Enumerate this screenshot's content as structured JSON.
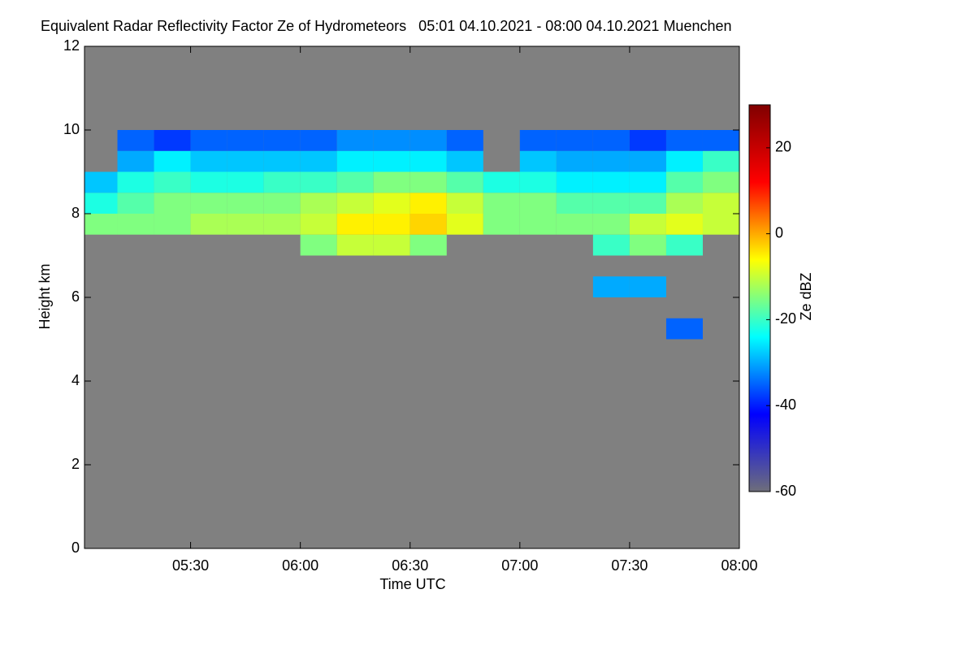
{
  "chart_data": {
    "type": "heatmap",
    "title": "Equivalent Radar Reflectivity Factor Ze of Hydrometeors   05:01 04.10.2021 - 08:00 04.10.2021 Muenchen",
    "x_label": "Time UTC",
    "y_label": "Height km",
    "colorbar_label": "Ze dBZ",
    "xlim": [
      "05:01",
      "08:00"
    ],
    "xticks": [
      "05:30",
      "06:00",
      "06:30",
      "07:00",
      "07:30",
      "08:00"
    ],
    "ylim": [
      0,
      12
    ],
    "yticks": [
      0,
      2,
      4,
      6,
      8,
      10,
      12
    ],
    "zlim": [
      -60,
      30
    ],
    "zticks": [
      -60,
      -40,
      -20,
      0,
      20
    ],
    "background": "#808080",
    "colormap": [
      "#6e6e7a",
      "#0000ff",
      "#00ffff",
      "#ffff00",
      "#ff0000",
      "#800000"
    ],
    "x": [
      "05:05",
      "05:15",
      "05:25",
      "05:35",
      "05:45",
      "05:55",
      "06:05",
      "06:15",
      "06:25",
      "06:35",
      "06:45",
      "06:55",
      "07:05",
      "07:15",
      "07:25",
      "07:35",
      "07:45",
      "07:55"
    ],
    "y": [
      5.25,
      5.75,
      6.25,
      6.75,
      7.25,
      7.75,
      8.25,
      8.75,
      9.25,
      9.75
    ],
    "z": [
      [
        null,
        null,
        null,
        null,
        null,
        null,
        null,
        null,
        null,
        null,
        null,
        null,
        null,
        null,
        null,
        null,
        -35,
        null
      ],
      [
        null,
        null,
        null,
        null,
        null,
        null,
        null,
        null,
        null,
        null,
        null,
        null,
        null,
        null,
        null,
        null,
        null,
        null
      ],
      [
        null,
        null,
        null,
        null,
        null,
        null,
        null,
        null,
        null,
        null,
        null,
        null,
        null,
        null,
        -30,
        -30,
        null,
        null
      ],
      [
        null,
        null,
        null,
        null,
        null,
        null,
        null,
        null,
        null,
        null,
        null,
        null,
        null,
        null,
        null,
        null,
        null,
        null
      ],
      [
        null,
        null,
        null,
        null,
        null,
        null,
        -15,
        -10,
        -10,
        -15,
        null,
        null,
        null,
        null,
        -20,
        -15,
        -20,
        null
      ],
      [
        -15,
        -15,
        -15,
        -12,
        -12,
        -12,
        -10,
        -5,
        -5,
        -3,
        -8,
        -15,
        -15,
        -15,
        -15,
        -10,
        -8,
        -10
      ],
      [
        -22,
        -18,
        -15,
        -15,
        -15,
        -15,
        -12,
        -10,
        -8,
        -5,
        -10,
        -15,
        -15,
        -18,
        -18,
        -18,
        -12,
        -10
      ],
      [
        -28,
        -22,
        -20,
        -22,
        -22,
        -20,
        -20,
        -18,
        -15,
        -15,
        -18,
        -22,
        -22,
        -25,
        -25,
        -25,
        -18,
        -15
      ],
      [
        null,
        -30,
        -25,
        -28,
        -28,
        -28,
        -28,
        -25,
        -25,
        -25,
        -28,
        null,
        -28,
        -30,
        -30,
        -30,
        -25,
        -20
      ],
      [
        null,
        -35,
        -38,
        -35,
        -35,
        -35,
        -35,
        -32,
        -32,
        -32,
        -35,
        null,
        -35,
        -35,
        -35,
        -38,
        -35,
        -35
      ]
    ]
  }
}
